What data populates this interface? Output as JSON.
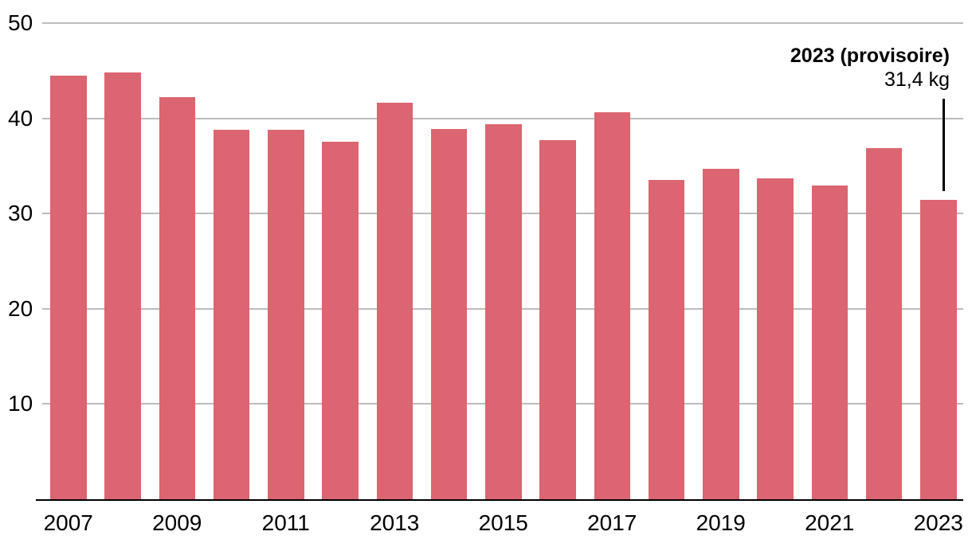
{
  "chart_data": {
    "type": "bar",
    "categories": [
      2007,
      2008,
      2009,
      2010,
      2011,
      2012,
      2013,
      2014,
      2015,
      2016,
      2017,
      2018,
      2019,
      2020,
      2021,
      2022,
      2023
    ],
    "values": [
      44.5,
      44.8,
      42.2,
      38.8,
      38.8,
      37.5,
      41.6,
      38.9,
      39.4,
      37.7,
      40.6,
      33.5,
      34.7,
      33.7,
      32.9,
      36.9,
      31.4
    ],
    "x_tick_labels": [
      "2007",
      "2009",
      "2011",
      "2013",
      "2015",
      "2017",
      "2019",
      "2021",
      "2023"
    ],
    "y_ticks": [
      10,
      20,
      30,
      40,
      50
    ],
    "ylim": [
      0,
      50
    ],
    "grid": true,
    "legend": "none",
    "bar_color": "#db6570",
    "gridline_color": "#bcbcbc",
    "axis_color": "#000000",
    "text_color": "#000000",
    "annotation": {
      "title": "2023 (provisoire)",
      "value": "31,4 kg"
    }
  }
}
